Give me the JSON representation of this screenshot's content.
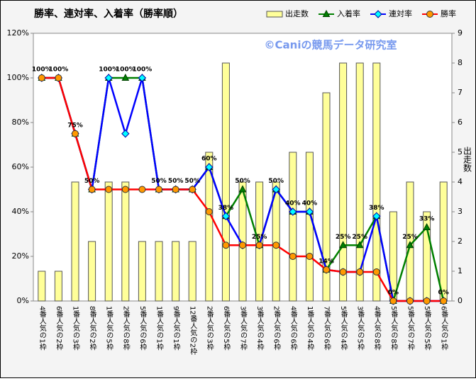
{
  "chart_data": {
    "type": "bar-line",
    "title": "勝率、連対率、入着率（勝率順）",
    "watermark": "©Caniの競馬データ研究室",
    "y2label": "出走数",
    "categories": [
      "4番人気の1枠",
      "6番人気の2枠",
      "1番人気の3枠",
      "8番人気の2枠",
      "1番人気の5枠",
      "2番人気の8枠",
      "5番人気の6枠",
      "1番人気の1枠",
      "9番人気の1枠",
      "12番人気の2枠",
      "2番人気の3枠",
      "6番人気の5枠",
      "3番人気の7枠",
      "3番人気の4枠",
      "2番人気の6枠",
      "4番人気の6枠",
      "1番人気の4枠",
      "7番人気の6枠",
      "5番人気の4枠",
      "3番人気の5枠",
      "4番人気の8枠",
      "5番人気の8枠",
      "5番人気の7枠",
      "5番人気の5枠",
      "6番人気の1枠"
    ],
    "series": [
      {
        "name": "出走数",
        "kind": "bar",
        "axis": "y2",
        "color": "#ffff99",
        "values": [
          1,
          1,
          4,
          2,
          4,
          4,
          2,
          2,
          2,
          2,
          5,
          8,
          4,
          4,
          4,
          5,
          5,
          7,
          8,
          8,
          8,
          3,
          4,
          3,
          4
        ]
      },
      {
        "name": "入着率",
        "kind": "line",
        "marker": "triangle",
        "color": "#008000",
        "marker_color": "#008000",
        "values": [
          100,
          100,
          75,
          50,
          100,
          100,
          100,
          50,
          50,
          50,
          60,
          38,
          50,
          25,
          50,
          40,
          40,
          14,
          25,
          25,
          38,
          0,
          25,
          33,
          0
        ],
        "value_labels": [
          "100%",
          "100%",
          "75%",
          "50%",
          "100%",
          "100%",
          "100%",
          "50%",
          "50%",
          "50%",
          "60%",
          "38%",
          "50%",
          "25%",
          "50%",
          "40%",
          "40%",
          "14%",
          "25%",
          "25%",
          "38%",
          "0%",
          "25%",
          "33%",
          "0%"
        ]
      },
      {
        "name": "連対率",
        "kind": "line",
        "marker": "diamond",
        "color": "#0000ff",
        "marker_color": "#00ffff",
        "values": [
          100,
          100,
          75,
          50,
          100,
          75,
          100,
          50,
          50,
          50,
          60,
          38,
          25,
          25,
          50,
          40,
          40,
          14,
          13,
          13,
          38,
          0,
          0,
          0,
          0
        ]
      },
      {
        "name": "勝率",
        "kind": "line",
        "marker": "circle",
        "color": "#ff0000",
        "marker_color": "#ff9900",
        "values": [
          100,
          100,
          75,
          50,
          50,
          50,
          50,
          50,
          50,
          50,
          40,
          25,
          25,
          25,
          25,
          20,
          20,
          14,
          13,
          13,
          13,
          0,
          0,
          0,
          0
        ]
      }
    ],
    "ylim": [
      0,
      120
    ],
    "yticks": [
      {
        "value": 0,
        "label": "0%"
      },
      {
        "value": 20,
        "label": "20%"
      },
      {
        "value": 40,
        "label": "40%"
      },
      {
        "value": 60,
        "label": "60%"
      },
      {
        "value": 80,
        "label": "80%"
      },
      {
        "value": 100,
        "label": "100%"
      },
      {
        "value": 120,
        "label": "120%"
      }
    ],
    "y2lim": [
      0,
      9
    ],
    "y2ticks": [
      0,
      1,
      2,
      3,
      4,
      5,
      6,
      7,
      8,
      9
    ],
    "grid": false
  }
}
